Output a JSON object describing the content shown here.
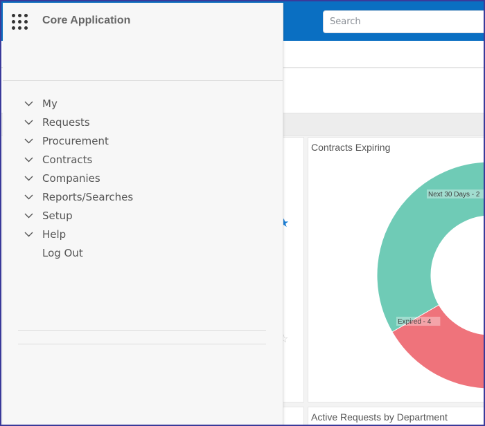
{
  "app": {
    "title": "Core Application"
  },
  "search": {
    "placeholder": "Search"
  },
  "menu": {
    "items": [
      {
        "label": "My",
        "expandable": true
      },
      {
        "label": "Requests",
        "expandable": true
      },
      {
        "label": "Procurement",
        "expandable": true
      },
      {
        "label": "Contracts",
        "expandable": true
      },
      {
        "label": "Companies",
        "expandable": true
      },
      {
        "label": "Reports/Searches",
        "expandable": true
      },
      {
        "label": "Setup",
        "expandable": true
      },
      {
        "label": "Help",
        "expandable": true
      },
      {
        "label": "Log Out",
        "expandable": false
      }
    ]
  },
  "dashboard": {
    "contracts_card_title": "Contracts Expiring",
    "requests_card_title": "Active Requests by Department"
  },
  "chart_data": {
    "type": "pie",
    "title": "Contracts Expiring",
    "categories": [
      "Next 30 Days",
      "Expired"
    ],
    "values": [
      2,
      4
    ],
    "labels": [
      "Next 30 Days - 2",
      "Expired - 4"
    ],
    "colors": [
      "#6fcbb6",
      "#ef737b"
    ],
    "donut": true
  },
  "colors": {
    "topbar": "#0a6fc2",
    "drawer_bg": "#f7f7f7",
    "star": "#1a7ed6"
  }
}
